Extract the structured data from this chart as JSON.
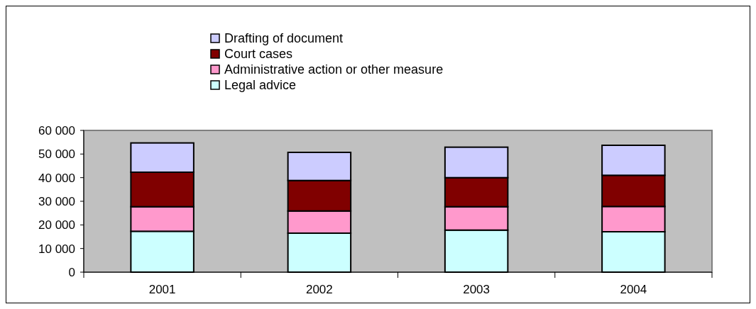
{
  "chart_data": {
    "type": "bar",
    "stacked": true,
    "categories": [
      "2001",
      "2002",
      "2003",
      "2004"
    ],
    "series": [
      {
        "name": "Legal advice",
        "color": "#ccffff",
        "values": [
          17300,
          16500,
          17800,
          17100
        ]
      },
      {
        "name": "Administrative action or other measure",
        "color": "#ff99cc",
        "values": [
          10400,
          9400,
          9900,
          10700
        ]
      },
      {
        "name": "Court cases",
        "color": "#800000",
        "values": [
          14600,
          12900,
          12300,
          13200
        ]
      },
      {
        "name": "Drafting of document",
        "color": "#ccccff",
        "values": [
          12400,
          11900,
          12900,
          12700
        ]
      }
    ],
    "ylim": [
      0,
      60000
    ],
    "yticks": [
      {
        "value": 0,
        "label": "0"
      },
      {
        "value": 10000,
        "label": "10 000"
      },
      {
        "value": 20000,
        "label": "20 000"
      },
      {
        "value": 30000,
        "label": "30 000"
      },
      {
        "value": 40000,
        "label": "40 000"
      },
      {
        "value": 50000,
        "label": "50 000"
      },
      {
        "value": 60000,
        "label": "60 000"
      }
    ],
    "grid": false,
    "legend": "top"
  }
}
